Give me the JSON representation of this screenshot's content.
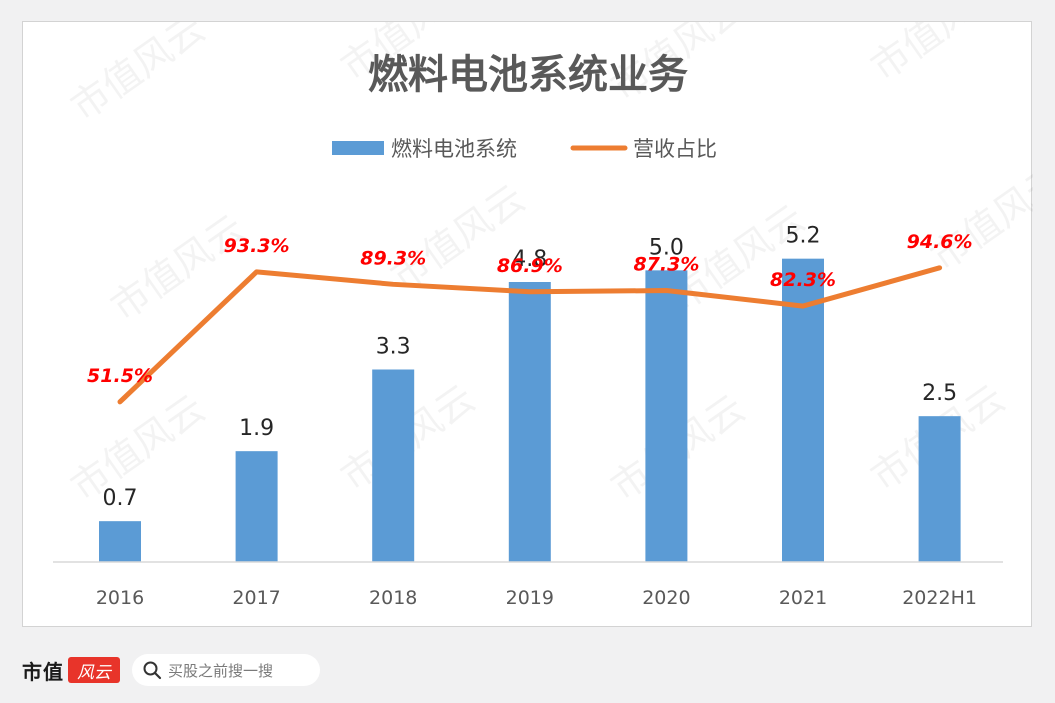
{
  "watermark": "市值风云",
  "brand": {
    "name": "市值",
    "seal": "风云"
  },
  "search": {
    "text": "买股之前搜一搜"
  },
  "chart_data": {
    "type": "bar",
    "title": "燃料电池系统业务",
    "categories": [
      "2016",
      "2017",
      "2018",
      "2019",
      "2020",
      "2021",
      "2022H1"
    ],
    "series": [
      {
        "name": "燃料电池系统",
        "type": "bar",
        "color": "#5b9bd5",
        "values": [
          0.7,
          1.9,
          3.3,
          4.8,
          5.0,
          5.2,
          2.5
        ],
        "labels": [
          "0.7",
          "1.9",
          "3.3",
          "4.8",
          "5.0",
          "5.2",
          "2.5"
        ]
      },
      {
        "name": "营收占比",
        "type": "line",
        "color": "#ed7d31",
        "axis": "secondary",
        "values": [
          51.5,
          93.3,
          89.3,
          86.9,
          87.3,
          82.3,
          94.6
        ],
        "labels": [
          "51.5%",
          "93.3%",
          "89.3%",
          "86.9%",
          "87.3%",
          "82.3%",
          "94.6%"
        ]
      }
    ],
    "ylim": [
      0,
      5.4
    ],
    "y2lim": [
      0,
      130
    ],
    "label_color": "#ff0000",
    "legend": "top",
    "grid": false
  }
}
